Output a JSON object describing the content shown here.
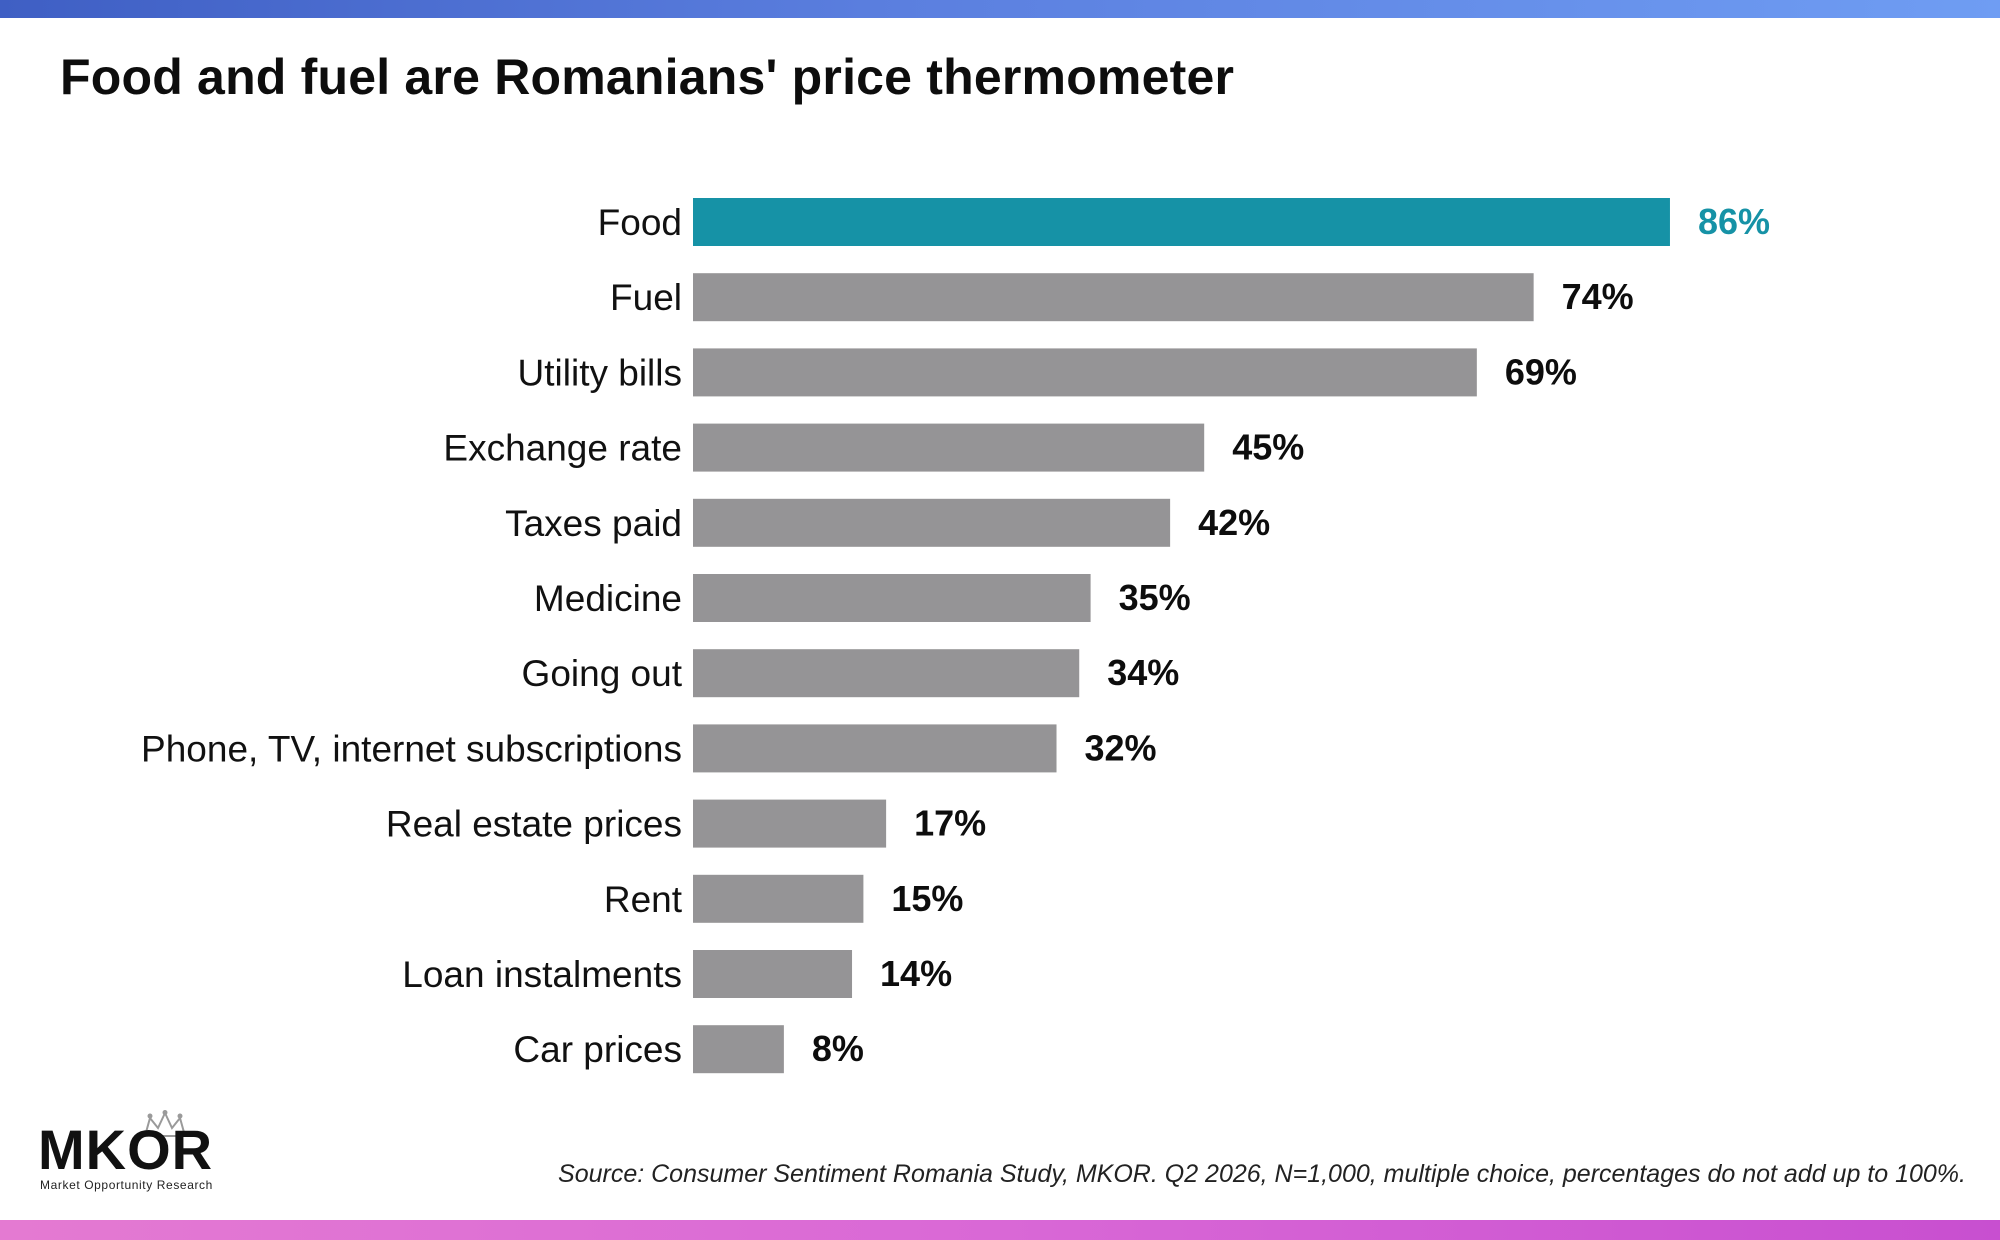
{
  "title": "Food and fuel are Romanians' price thermometer",
  "source": "Source: Consumer Sentiment Romania Study, MKOR. Q2 2026, N=1,000, multiple choice, percentages do not add up to 100%.",
  "logo": {
    "name": "MKOR",
    "tagline": "Market Opportunity Research",
    "icon": "crown-icon"
  },
  "colors": {
    "highlight": "#1692a6",
    "bar": "#959496",
    "top_gradient": [
      "#3f5fc4",
      "#6f9df3"
    ],
    "bottom_gradient": [
      "#e47ad2",
      "#c84fd0"
    ]
  },
  "chart_data": {
    "type": "bar",
    "orientation": "horizontal",
    "categories": [
      "Food",
      "Fuel",
      "Utility bills",
      "Exchange rate",
      "Taxes paid",
      "Medicine",
      "Going out",
      "Phone, TV, internet subscriptions",
      "Real estate prices",
      "Rent",
      "Loan instalments",
      "Car prices"
    ],
    "values": [
      86,
      74,
      69,
      45,
      42,
      35,
      34,
      32,
      17,
      15,
      14,
      8
    ],
    "value_labels": [
      "86%",
      "74%",
      "69%",
      "45%",
      "42%",
      "35%",
      "34%",
      "32%",
      "17%",
      "15%",
      "14%",
      "8%"
    ],
    "highlight_index": 0,
    "title": "Food and fuel are Romanians' price thermometer",
    "xlabel": "",
    "ylabel": "",
    "xlim": [
      0,
      100
    ],
    "grid": false,
    "legend": "none"
  }
}
